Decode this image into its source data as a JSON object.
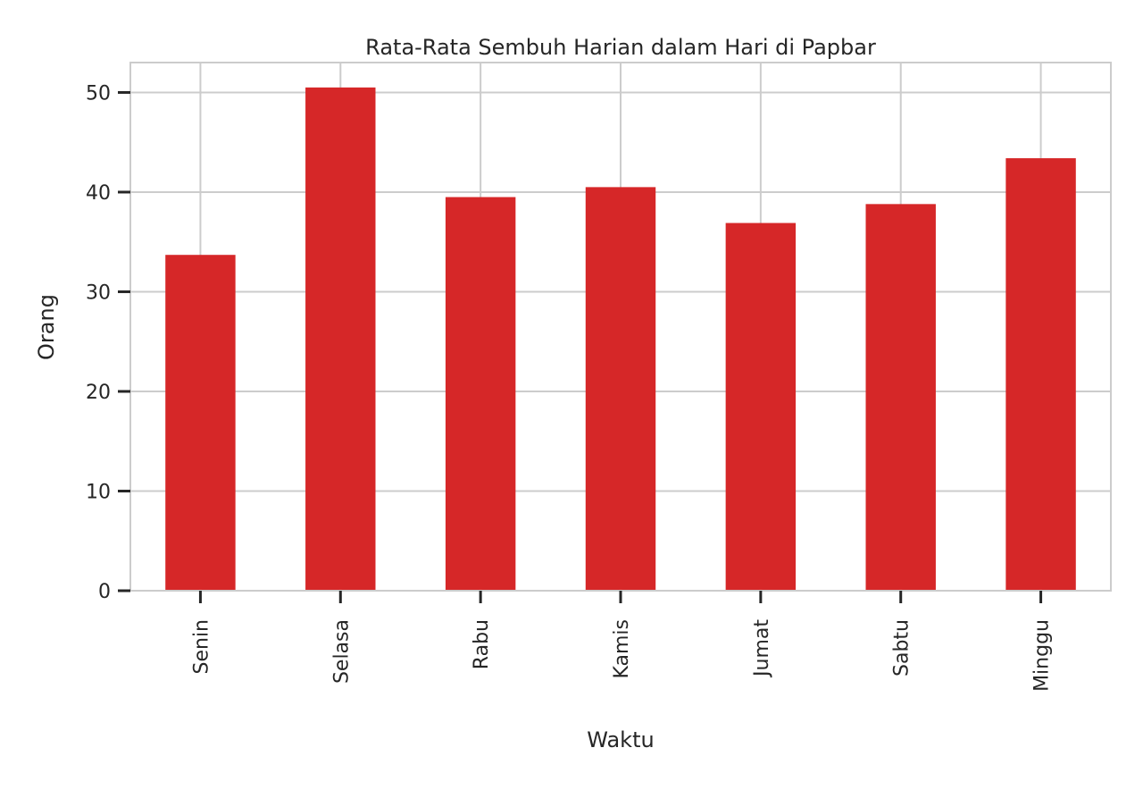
{
  "chart_data": {
    "type": "bar",
    "title": "Rata-Rata Sembuh Harian dalam Hari di Papbar",
    "xlabel": "Waktu",
    "ylabel": "Orang",
    "categories": [
      "Senin",
      "Selasa",
      "Rabu",
      "Kamis",
      "Jumat",
      "Sabtu",
      "Minggu"
    ],
    "values": [
      33.7,
      50.5,
      39.5,
      40.5,
      36.9,
      38.8,
      43.4
    ],
    "ylim": [
      0,
      53
    ],
    "yticks": [
      0,
      10,
      20,
      30,
      40,
      50
    ],
    "grid": true,
    "colors": {
      "bar": "#d62728",
      "grid": "#cccccc",
      "spine": "#cccccc",
      "text": "#262626"
    }
  }
}
